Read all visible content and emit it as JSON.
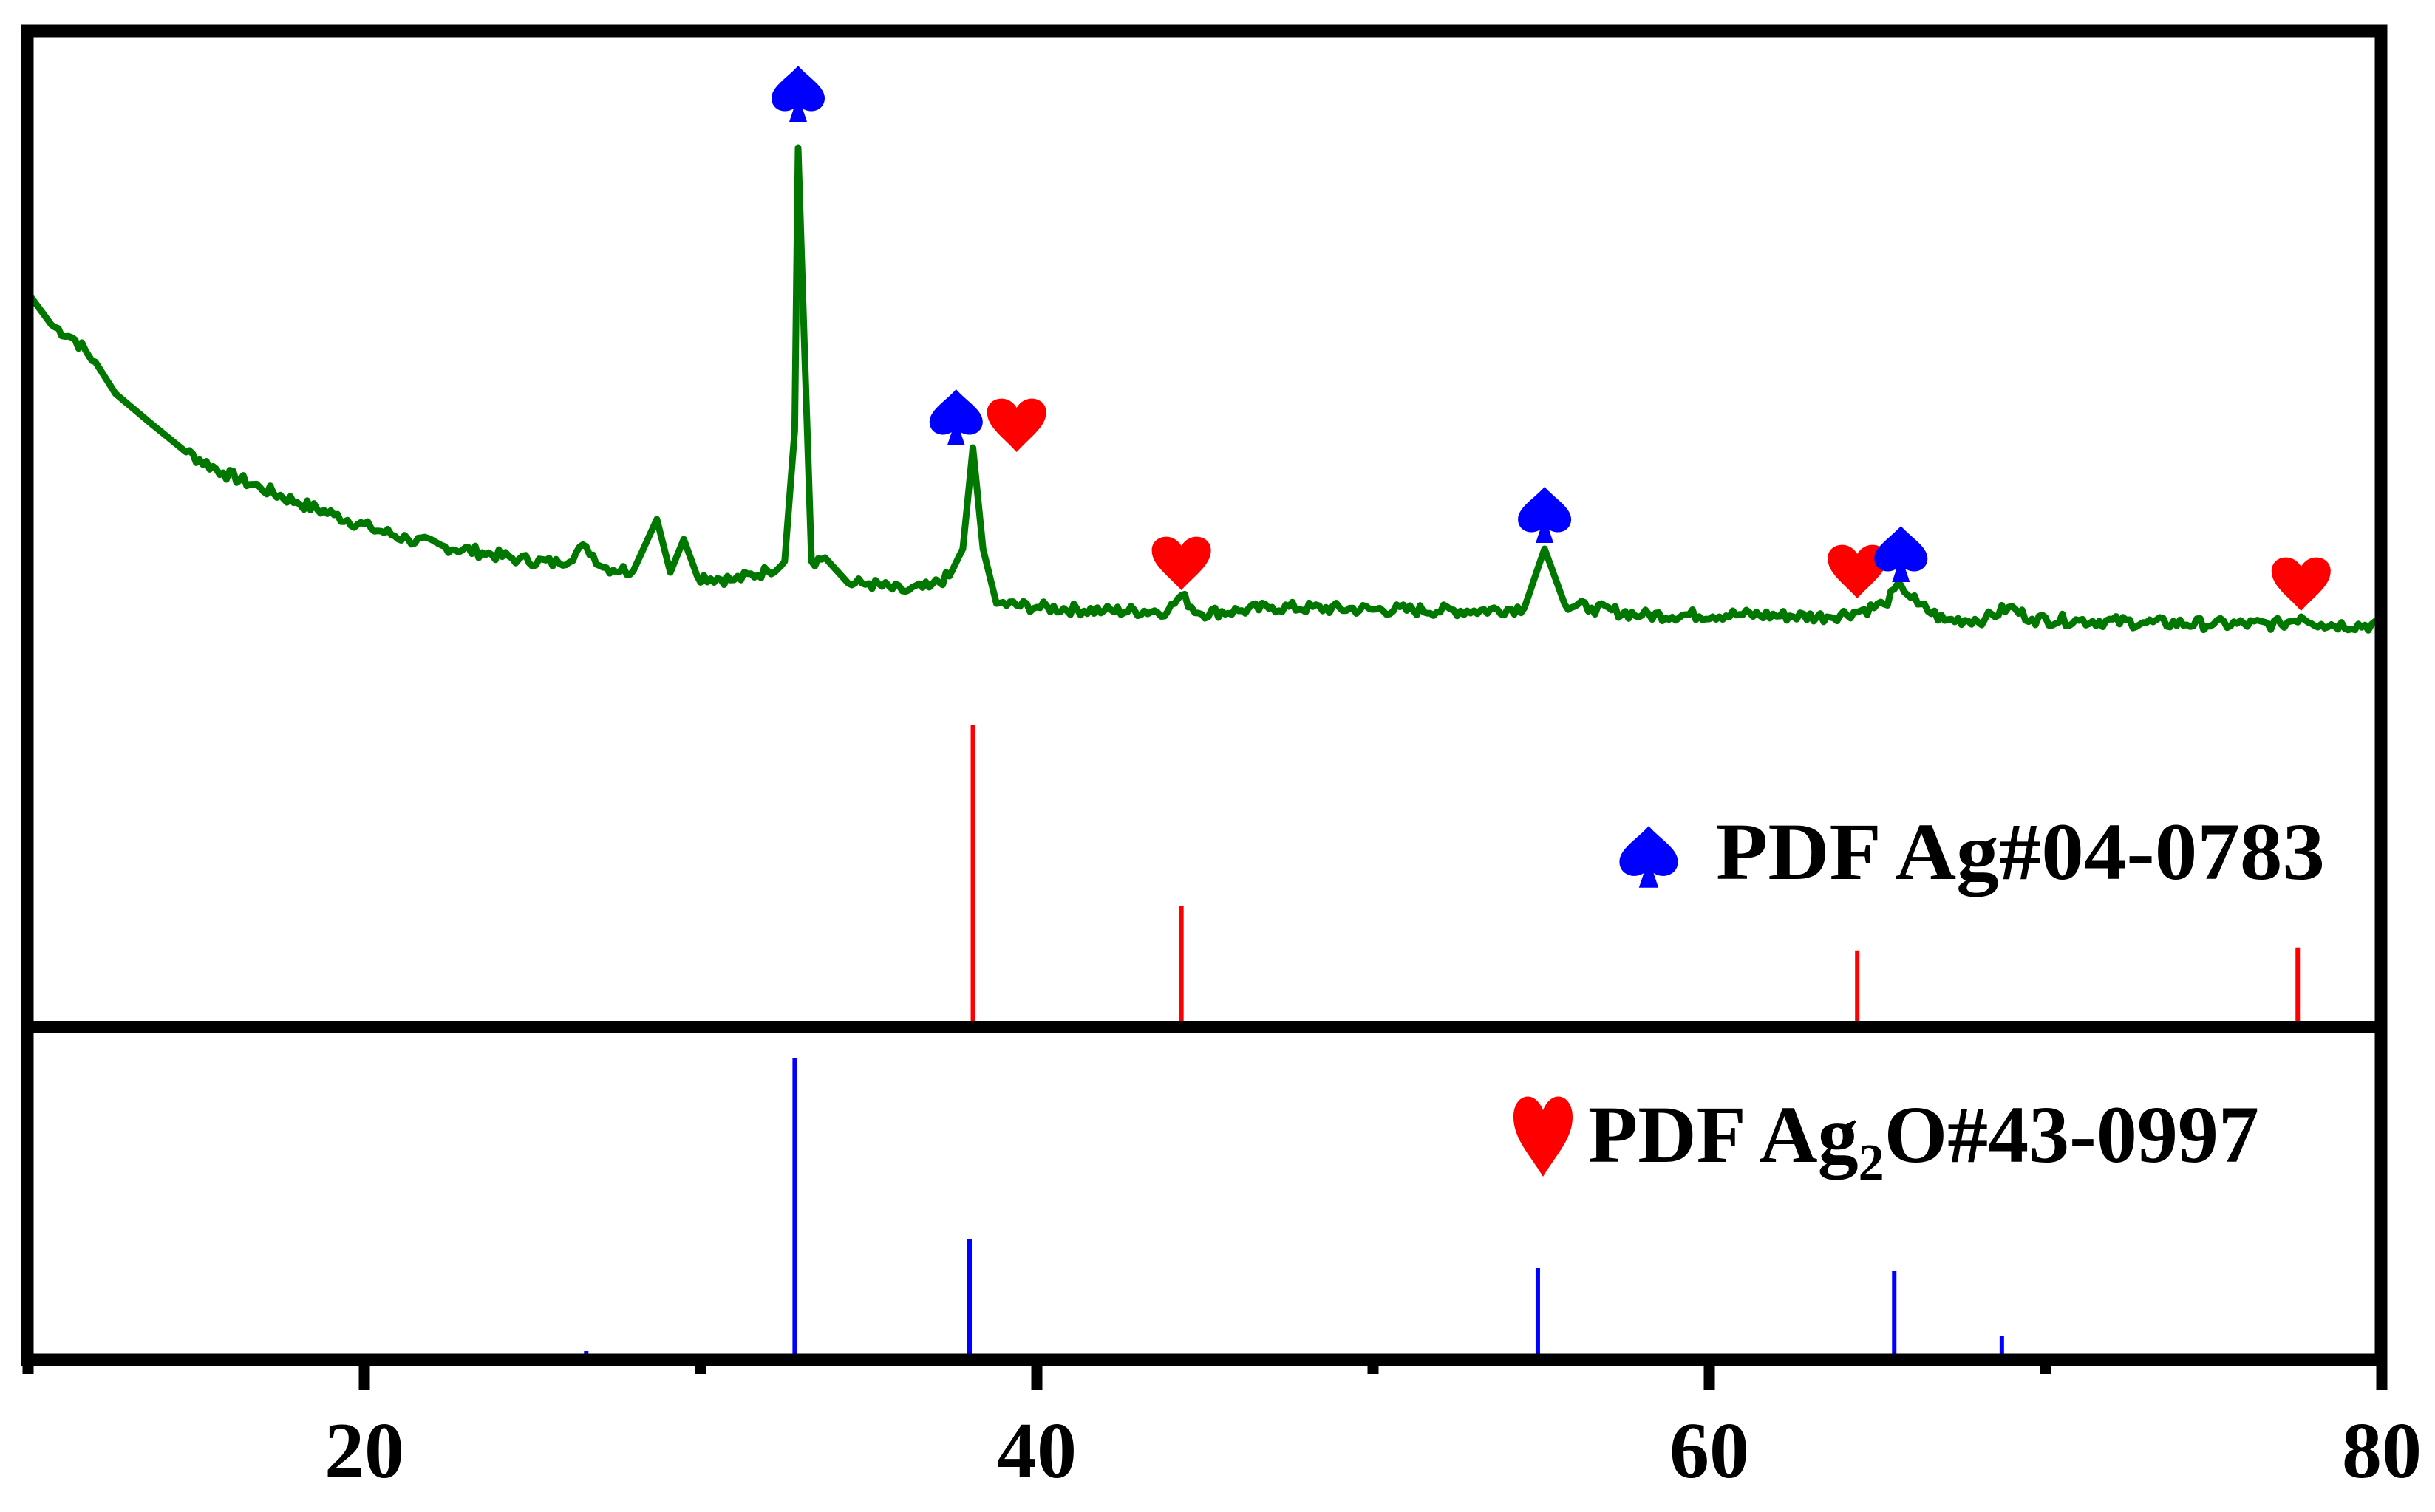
{
  "chart_data": {
    "type": "line",
    "title": "",
    "xlabel": "",
    "ylabel": "",
    "xlim": [
      10,
      80
    ],
    "x_ticks_major": [
      20,
      40,
      60,
      80
    ],
    "x_ticks_minor": [
      30,
      50,
      70
    ],
    "grid": false,
    "panels": [
      {
        "name": "sample-pattern-and-ag2o-reference",
        "series": [
          {
            "name": "XRD pattern",
            "type": "line",
            "color": "#007800",
            "units": "a.u.",
            "x": [
              10.05,
              10.7,
              11.4,
              12.0,
              12.6,
              13.7,
              14.7,
              15.8,
              16.9,
              18.0,
              19.1,
              20.2,
              21.3,
              22.4,
              23.5,
              24.6,
              25.8,
              26.6,
              27.1,
              28.0,
              28.7,
              29.1,
              29.5,
              29.9,
              31.0,
              32.0,
              32.5,
              32.8,
              32.9,
              33.1,
              33.3,
              33.7,
              34.4,
              35.0,
              36.0,
              36.8,
              37.4,
              37.8,
              38.1,
              38.4,
              38.8,
              40.0,
              42.0,
              43.9,
              44.3,
              44.8,
              46.0,
              47.0,
              50.0,
              53.0,
              54.5,
              55.1,
              55.7,
              56.5,
              58.0,
              61.0,
              63.5,
              64.5,
              65.2,
              65.7,
              66.2,
              67.0,
              68.2,
              68.9,
              69.6,
              71.0,
              73.0,
              75.0,
              77.0,
              77.6,
              78.2,
              80.0
            ],
            "y": [
              983,
              943,
              923,
              893,
              850,
              808,
              771,
              743,
              723,
              703,
              686,
              668,
              653,
              643,
              635,
              626,
              620,
              643,
              615,
              610,
              680,
              608,
              653,
              603,
              598,
              610,
              623,
              800,
              1183,
              900,
              623,
              628,
              593,
              593,
              583,
              588,
              603,
              640,
              777,
              640,
              566,
              561,
              556,
              556,
              577,
              553,
              556,
              561,
              558,
              556,
              560,
              640,
              565,
              560,
              550,
              551,
              548,
              556,
              565,
              591,
              565,
              543,
              545,
              561,
              545,
              543,
              540,
              538,
              538,
              548,
              538,
              536
            ]
          },
          {
            "name": "PDF Ag2O#43-0997 reference",
            "type": "stick",
            "color": "#ff0000",
            "x": [
              38.1,
              44.3,
              64.4,
              77.5
            ],
            "values": [
              100,
              39,
              24,
              25
            ]
          }
        ],
        "legend": {
          "symbol": "spade",
          "symbol_color": "#0000ff",
          "text": "PDF Ag#04-0783"
        }
      },
      {
        "name": "ag-reference",
        "series": [
          {
            "name": "PDF Ag#04-0783 reference",
            "type": "stick",
            "color": "#0000ff",
            "x": [
              26.6,
              32.8,
              38.0,
              54.9,
              65.5,
              68.7
            ],
            "values": [
              1,
              100,
              39,
              29,
              28,
              6
            ]
          }
        ],
        "legend": {
          "symbol": "heart",
          "symbol_color": "#ff0000",
          "text_prefix": "PDF Ag",
          "text_subscript": "2",
          "text_suffix": "O#43-0997"
        }
      }
    ],
    "annotations": [
      {
        "symbol": "spade",
        "color": "#0000ff",
        "x": 32.9,
        "y": 1256
      },
      {
        "symbol": "spade",
        "color": "#0000ff",
        "x": 37.6,
        "y": 818
      },
      {
        "symbol": "heart",
        "color": "#ff0000",
        "x": 39.4,
        "y": 811
      },
      {
        "symbol": "heart",
        "color": "#ff0000",
        "x": 44.3,
        "y": 624
      },
      {
        "symbol": "spade",
        "color": "#0000ff",
        "x": 55.1,
        "y": 686
      },
      {
        "symbol": "heart",
        "color": "#ff0000",
        "x": 64.4,
        "y": 613
      },
      {
        "symbol": "spade",
        "color": "#0000ff",
        "x": 65.7,
        "y": 633
      },
      {
        "symbol": "heart",
        "color": "#ff0000",
        "x": 77.6,
        "y": 596
      }
    ]
  },
  "axis": {
    "tick_labels": [
      "20",
      "40",
      "60",
      "80"
    ]
  },
  "legend": {
    "ag": {
      "text": "PDF Ag#04-0783"
    },
    "ag2o": {
      "prefix": "PDF Ag",
      "sub": "2",
      "suffix": "O#43-0997"
    }
  },
  "colors": {
    "pattern": "#007800",
    "ag_marker": "#0000ff",
    "ag2o_marker": "#ff0000",
    "frame": "#000000"
  }
}
